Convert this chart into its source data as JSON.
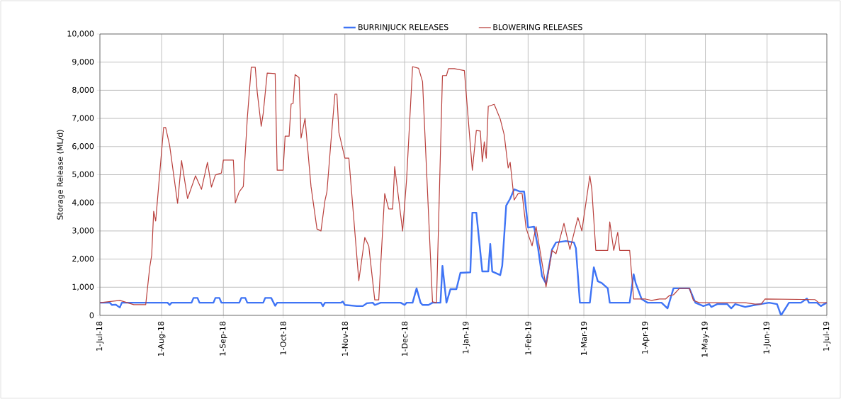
{
  "chart_data": {
    "type": "line",
    "ylabel": "Storage Release (ML/d)",
    "legend": "top",
    "grid": true,
    "marker": "none",
    "line_style": "solid",
    "xlim": [
      "2018-07-01",
      "2019-07-01"
    ],
    "xticks": [
      {
        "value": "2018-07-01",
        "label": "1-Jul-18"
      },
      {
        "value": "2018-08-01",
        "label": "1-Aug-18"
      },
      {
        "value": "2018-09-01",
        "label": "1-Sep-18"
      },
      {
        "value": "2018-10-01",
        "label": "1-Oct-18"
      },
      {
        "value": "2018-11-01",
        "label": "1-Nov-18"
      },
      {
        "value": "2018-12-01",
        "label": "1-Dec-18"
      },
      {
        "value": "2019-01-01",
        "label": "1-Jan-19"
      },
      {
        "value": "2019-02-01",
        "label": "1-Feb-19"
      },
      {
        "value": "2019-03-01",
        "label": "1-Mar-19"
      },
      {
        "value": "2019-04-01",
        "label": "1-Apr-19"
      },
      {
        "value": "2019-05-01",
        "label": "1-May-19"
      },
      {
        "value": "2019-06-01",
        "label": "1-Jun-19"
      },
      {
        "value": "2019-07-01",
        "label": "1-Jul-19"
      }
    ],
    "ylim": [
      0,
      10000
    ],
    "yticks": [
      0,
      {
        "value": 1000,
        "label": "1,000"
      },
      {
        "value": 2000,
        "label": "2,000"
      },
      {
        "value": 3000,
        "label": "3,000"
      },
      {
        "value": 4000,
        "label": "4,000"
      },
      {
        "value": 5000,
        "label": "5,000"
      },
      {
        "value": 6000,
        "label": "6,000"
      },
      {
        "value": 7000,
        "label": "7,000"
      },
      {
        "value": 8000,
        "label": "8,000"
      },
      {
        "value": 9000,
        "label": "9,000"
      },
      {
        "value": 10000,
        "label": "10,000"
      }
    ],
    "series": [
      {
        "name": "BURRINJUCK RELEASES",
        "color": "#3f74f5",
        "x": [
          "2018-07-01",
          "2018-07-06",
          "2018-07-07",
          "2018-07-09",
          "2018-07-11",
          "2018-07-12",
          "2018-08-04",
          "2018-08-05",
          "2018-08-06",
          "2018-08-16",
          "2018-08-17",
          "2018-08-19",
          "2018-08-20",
          "2018-08-27",
          "2018-08-28",
          "2018-08-30",
          "2018-08-31",
          "2018-09-09",
          "2018-09-10",
          "2018-09-12",
          "2018-09-13",
          "2018-09-21",
          "2018-09-22",
          "2018-09-25",
          "2018-09-27",
          "2018-09-28",
          "2018-10-20",
          "2018-10-21",
          "2018-10-22",
          "2018-10-30",
          "2018-10-31",
          "2018-11-01",
          "2018-11-07",
          "2018-11-10",
          "2018-11-12",
          "2018-11-15",
          "2018-11-16",
          "2018-11-19",
          "2018-11-29",
          "2018-12-01",
          "2018-12-02",
          "2018-12-05",
          "2018-12-07",
          "2018-12-09",
          "2018-12-10",
          "2018-12-13",
          "2018-12-15",
          "2018-12-19",
          "2018-12-20",
          "2018-12-22",
          "2018-12-24",
          "2018-12-27",
          "2018-12-29",
          "2019-01-03",
          "2019-01-04",
          "2019-01-06",
          "2019-01-09",
          "2019-01-12",
          "2019-01-13",
          "2019-01-14",
          "2019-01-18",
          "2019-01-19",
          "2019-01-21",
          "2019-01-23",
          "2019-01-25",
          "2019-01-28",
          "2019-01-30",
          "2019-02-01",
          "2019-02-04",
          "2019-02-06",
          "2019-02-08",
          "2019-02-10",
          "2019-02-13",
          "2019-02-15",
          "2019-02-20",
          "2019-02-24",
          "2019-02-25",
          "2019-02-27",
          "2019-03-04",
          "2019-03-06",
          "2019-03-08",
          "2019-03-10",
          "2019-03-13",
          "2019-03-14",
          "2019-03-24",
          "2019-03-26",
          "2019-03-27",
          "2019-03-30",
          "2019-04-02",
          "2019-04-09",
          "2019-04-12",
          "2019-04-15",
          "2019-04-23",
          "2019-04-26",
          "2019-04-30",
          "2019-05-03",
          "2019-05-04",
          "2019-05-07",
          "2019-05-12",
          "2019-05-14",
          "2019-05-16",
          "2019-05-21",
          "2019-05-26",
          "2019-06-02",
          "2019-06-06",
          "2019-06-08",
          "2019-06-12",
          "2019-06-18",
          "2019-06-21",
          "2019-06-22",
          "2019-06-26",
          "2019-06-28",
          "2019-07-01"
        ],
        "values": [
          450,
          450,
          370,
          380,
          280,
          450,
          450,
          370,
          450,
          450,
          620,
          620,
          450,
          450,
          620,
          620,
          450,
          450,
          620,
          620,
          450,
          450,
          620,
          620,
          340,
          450,
          450,
          330,
          450,
          450,
          490,
          370,
          330,
          330,
          430,
          450,
          370,
          450,
          450,
          370,
          450,
          450,
          960,
          450,
          370,
          370,
          450,
          450,
          1760,
          450,
          930,
          930,
          1510,
          1530,
          3650,
          3650,
          1560,
          1560,
          2540,
          1560,
          1430,
          1760,
          3900,
          4150,
          4480,
          4400,
          4400,
          3120,
          3150,
          2390,
          1390,
          1130,
          2340,
          2590,
          2640,
          2590,
          2390,
          450,
          450,
          1710,
          1210,
          1150,
          960,
          450,
          450,
          1460,
          1150,
          580,
          450,
          450,
          250,
          960,
          960,
          450,
          330,
          400,
          300,
          400,
          400,
          250,
          400,
          300,
          370,
          450,
          400,
          0,
          450,
          450,
          600,
          450,
          450,
          330,
          450
        ]
      },
      {
        "name": "BLOWERING RELEASES",
        "color": "#b9403d",
        "x": [
          "2018-07-01",
          "2018-07-11",
          "2018-07-18",
          "2018-07-24",
          "2018-07-26",
          "2018-07-27",
          "2018-07-28",
          "2018-07-29",
          "2018-08-02",
          "2018-08-03",
          "2018-08-05",
          "2018-08-09",
          "2018-08-11",
          "2018-08-14",
          "2018-08-18",
          "2018-08-21",
          "2018-08-24",
          "2018-08-26",
          "2018-08-28",
          "2018-08-31",
          "2018-09-01",
          "2018-09-06",
          "2018-09-07",
          "2018-09-09",
          "2018-09-11",
          "2018-09-13",
          "2018-09-15",
          "2018-09-17",
          "2018-09-18",
          "2018-09-20",
          "2018-09-21",
          "2018-09-23",
          "2018-09-27",
          "2018-09-28",
          "2018-10-01",
          "2018-10-02",
          "2018-10-04",
          "2018-10-05",
          "2018-10-06",
          "2018-10-07",
          "2018-10-09",
          "2018-10-10",
          "2018-10-12",
          "2018-10-15",
          "2018-10-18",
          "2018-10-20",
          "2018-10-22",
          "2018-10-23",
          "2018-10-25",
          "2018-10-27",
          "2018-10-28",
          "2018-10-29",
          "2018-11-01",
          "2018-11-03",
          "2018-11-08",
          "2018-11-11",
          "2018-11-13",
          "2018-11-16",
          "2018-11-18",
          "2018-11-21",
          "2018-11-23",
          "2018-11-25",
          "2018-11-26",
          "2018-11-30",
          "2018-12-02",
          "2018-12-05",
          "2018-12-08",
          "2018-12-10",
          "2018-12-15",
          "2018-12-17",
          "2018-12-20",
          "2018-12-22",
          "2018-12-23",
          "2018-12-26",
          "2018-12-31",
          "2019-01-04",
          "2019-01-06",
          "2019-01-08",
          "2019-01-09",
          "2019-01-10",
          "2019-01-11",
          "2019-01-12",
          "2019-01-15",
          "2019-01-18",
          "2019-01-20",
          "2019-01-22",
          "2019-01-23",
          "2019-01-25",
          "2019-01-27",
          "2019-01-29",
          "2019-01-31",
          "2019-02-03",
          "2019-02-05",
          "2019-02-10",
          "2019-02-13",
          "2019-02-15",
          "2019-02-19",
          "2019-02-22",
          "2019-02-26",
          "2019-02-28",
          "2019-03-04",
          "2019-03-05",
          "2019-03-07",
          "2019-03-13",
          "2019-03-14",
          "2019-03-16",
          "2019-03-18",
          "2019-03-19",
          "2019-03-24",
          "2019-03-26",
          "2019-04-01",
          "2019-04-04",
          "2019-04-08",
          "2019-04-11",
          "2019-04-13",
          "2019-04-15",
          "2019-04-18",
          "2019-04-23",
          "2019-04-25",
          "2019-04-28",
          "2019-05-21",
          "2019-05-26",
          "2019-05-29",
          "2019-05-31",
          "2019-06-25",
          "2019-06-27",
          "2019-07-01"
        ],
        "values": [
          450,
          530,
          380,
          380,
          1700,
          2140,
          3700,
          3350,
          6680,
          6680,
          6050,
          3980,
          5500,
          4150,
          4960,
          4480,
          5440,
          4560,
          4990,
          5060,
          5520,
          5520,
          4000,
          4400,
          4580,
          7000,
          8820,
          8820,
          7930,
          6720,
          7180,
          8610,
          8590,
          5160,
          5160,
          6370,
          6370,
          7510,
          7530,
          8560,
          8450,
          6300,
          7000,
          4580,
          3070,
          3000,
          4080,
          4400,
          6170,
          7860,
          7860,
          6500,
          5590,
          5590,
          1230,
          2770,
          2470,
          550,
          550,
          4330,
          3780,
          3780,
          5290,
          3000,
          4840,
          8840,
          8780,
          8310,
          480,
          450,
          8520,
          8520,
          8770,
          8770,
          8700,
          5160,
          6570,
          6550,
          5460,
          6170,
          5590,
          7430,
          7500,
          6980,
          6420,
          5240,
          5440,
          4100,
          4330,
          4330,
          3100,
          2470,
          3150,
          1010,
          2310,
          2190,
          3270,
          2340,
          3480,
          3000,
          4960,
          4480,
          2310,
          2310,
          3320,
          2310,
          2950,
          2310,
          2310,
          580,
          580,
          530,
          580,
          580,
          710,
          730,
          960,
          960,
          530,
          450,
          450,
          400,
          400,
          580,
          560,
          450,
          450
        ]
      }
    ]
  }
}
